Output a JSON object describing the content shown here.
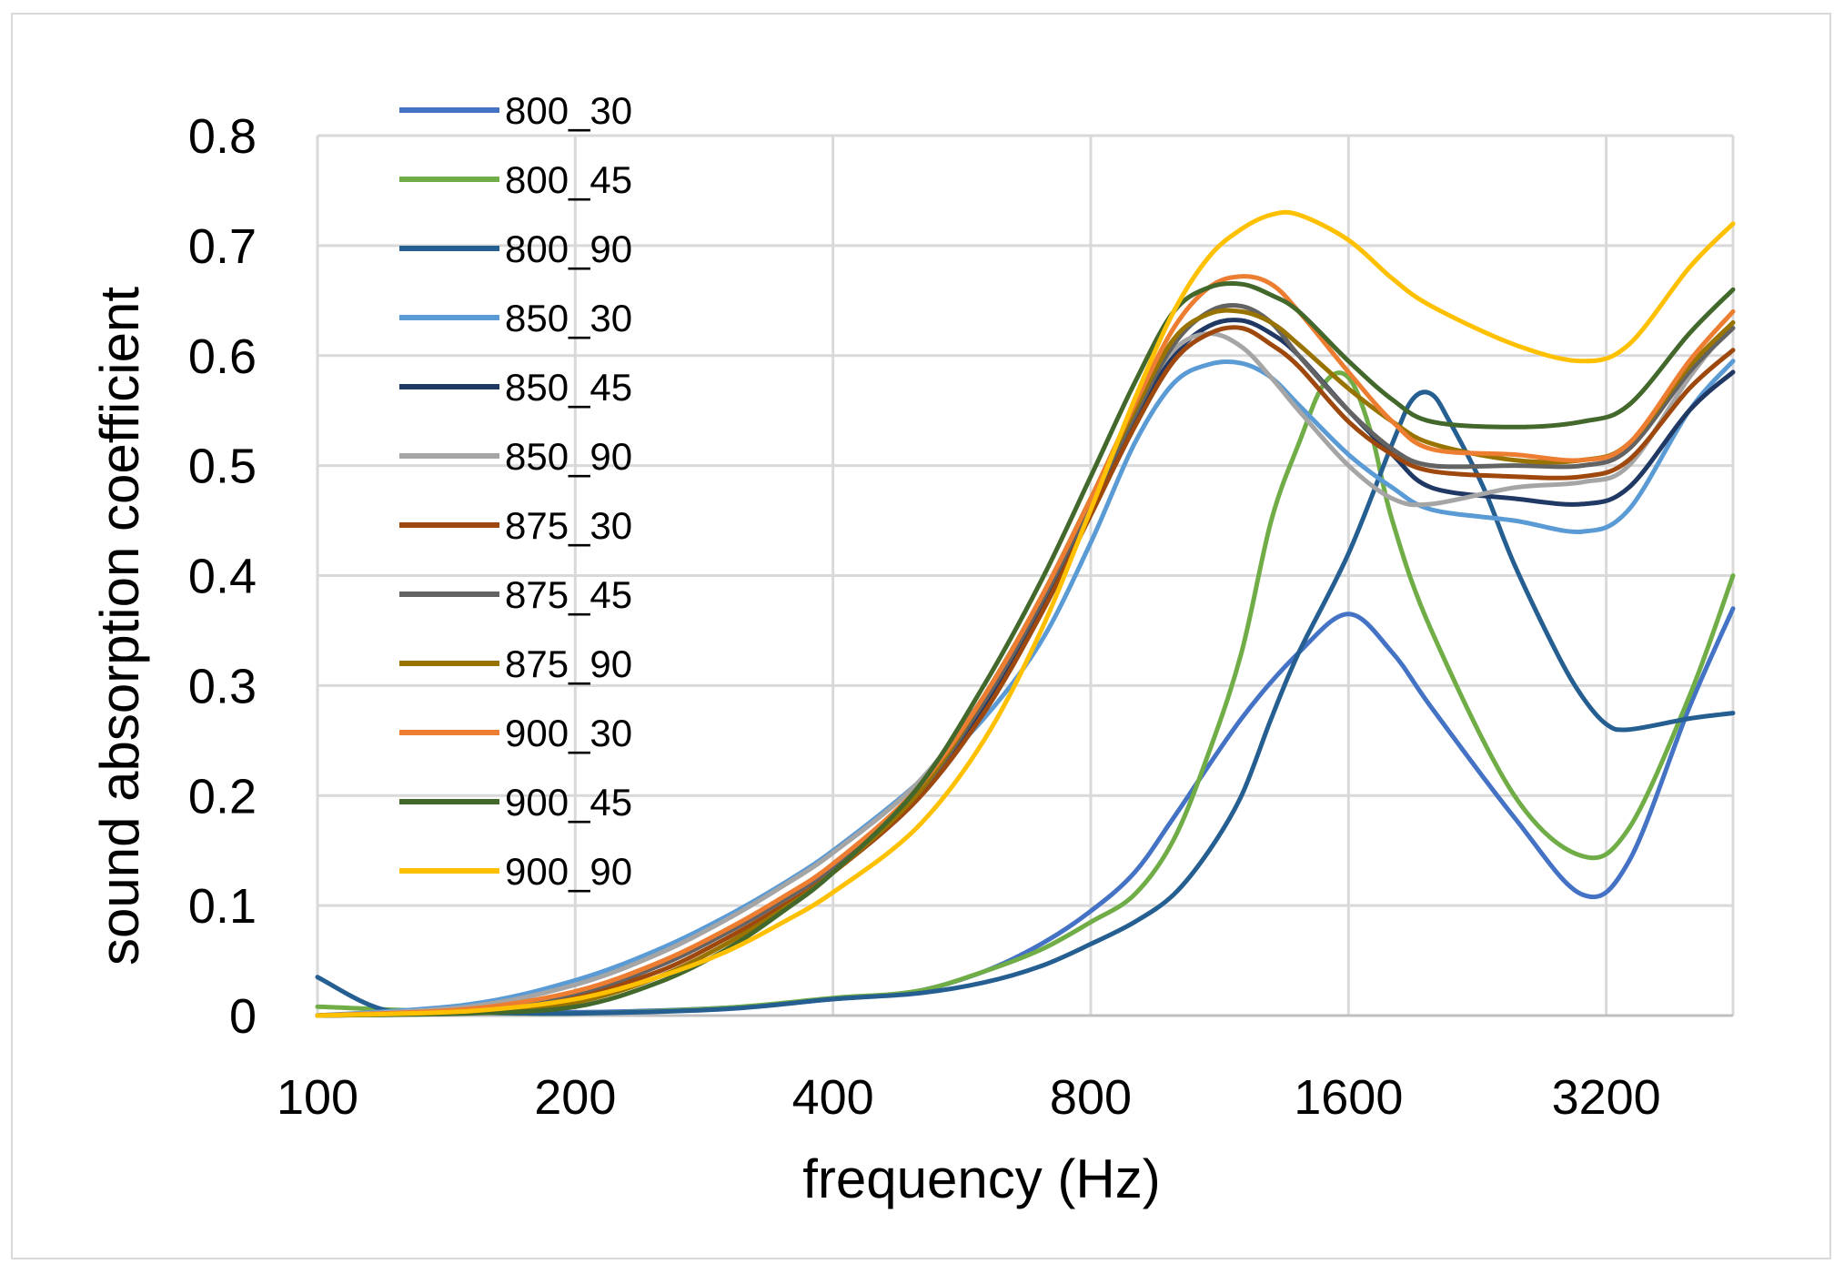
{
  "chart_data": {
    "type": "line",
    "title": "",
    "xlabel": "frequency (Hz)",
    "ylabel": "sound absorption coefficient",
    "x_scale": "log2",
    "xlim": [
      100,
      4500
    ],
    "ylim": [
      0,
      0.8
    ],
    "x_ticks": [
      100,
      200,
      400,
      800,
      1600,
      3200
    ],
    "x_tick_labels": [
      "100",
      "200",
      "400",
      "800",
      "1600",
      "3200"
    ],
    "y_ticks": [
      0,
      0.1,
      0.2,
      0.3,
      0.4,
      0.5,
      0.6,
      0.7,
      0.8
    ],
    "y_tick_labels": [
      "0",
      "0.1",
      "0.2",
      "0.3",
      "0.4",
      "0.5",
      "0.6",
      "0.7",
      "0.8"
    ],
    "grid": true,
    "legend_position": "top-left",
    "series": [
      {
        "name": "800_30",
        "color": "#4472C4",
        "points": [
          [
            100,
            0.0
          ],
          [
            150,
            0.005
          ],
          [
            200,
            0.003
          ],
          [
            300,
            0.007
          ],
          [
            400,
            0.015
          ],
          [
            500,
            0.022
          ],
          [
            600,
            0.04
          ],
          [
            700,
            0.065
          ],
          [
            800,
            0.095
          ],
          [
            900,
            0.13
          ],
          [
            1000,
            0.18
          ],
          [
            1200,
            0.27
          ],
          [
            1400,
            0.33
          ],
          [
            1600,
            0.365
          ],
          [
            1800,
            0.33
          ],
          [
            2000,
            0.28
          ],
          [
            2500,
            0.18
          ],
          [
            3000,
            0.11
          ],
          [
            3400,
            0.14
          ],
          [
            4000,
            0.28
          ],
          [
            4500,
            0.37
          ]
        ]
      },
      {
        "name": "800_45",
        "color": "#70AD47",
        "points": [
          [
            100,
            0.008
          ],
          [
            150,
            0.003
          ],
          [
            200,
            0.002
          ],
          [
            300,
            0.007
          ],
          [
            400,
            0.016
          ],
          [
            500,
            0.022
          ],
          [
            600,
            0.04
          ],
          [
            700,
            0.06
          ],
          [
            800,
            0.085
          ],
          [
            900,
            0.11
          ],
          [
            1000,
            0.16
          ],
          [
            1100,
            0.24
          ],
          [
            1200,
            0.33
          ],
          [
            1300,
            0.45
          ],
          [
            1400,
            0.52
          ],
          [
            1500,
            0.575
          ],
          [
            1600,
            0.58
          ],
          [
            1700,
            0.53
          ],
          [
            1800,
            0.45
          ],
          [
            2000,
            0.35
          ],
          [
            2500,
            0.2
          ],
          [
            3000,
            0.145
          ],
          [
            3400,
            0.17
          ],
          [
            4000,
            0.29
          ],
          [
            4500,
            0.4
          ]
        ]
      },
      {
        "name": "800_90",
        "color": "#255E91",
        "points": [
          [
            100,
            0.035
          ],
          [
            120,
            0.005
          ],
          [
            150,
            0.003
          ],
          [
            200,
            0.002
          ],
          [
            300,
            0.006
          ],
          [
            400,
            0.015
          ],
          [
            500,
            0.02
          ],
          [
            600,
            0.03
          ],
          [
            700,
            0.045
          ],
          [
            800,
            0.065
          ],
          [
            900,
            0.085
          ],
          [
            1000,
            0.11
          ],
          [
            1100,
            0.15
          ],
          [
            1200,
            0.2
          ],
          [
            1300,
            0.27
          ],
          [
            1400,
            0.33
          ],
          [
            1600,
            0.42
          ],
          [
            1800,
            0.52
          ],
          [
            1900,
            0.56
          ],
          [
            2000,
            0.565
          ],
          [
            2100,
            0.54
          ],
          [
            2300,
            0.48
          ],
          [
            2500,
            0.41
          ],
          [
            2800,
            0.33
          ],
          [
            3000,
            0.29
          ],
          [
            3200,
            0.265
          ],
          [
            3400,
            0.26
          ],
          [
            4000,
            0.27
          ],
          [
            4500,
            0.275
          ]
        ]
      },
      {
        "name": "850_30",
        "color": "#5B9BD5",
        "points": [
          [
            100,
            0.0
          ],
          [
            150,
            0.01
          ],
          [
            200,
            0.032
          ],
          [
            250,
            0.06
          ],
          [
            300,
            0.09
          ],
          [
            350,
            0.12
          ],
          [
            400,
            0.15
          ],
          [
            500,
            0.21
          ],
          [
            600,
            0.27
          ],
          [
            700,
            0.34
          ],
          [
            800,
            0.43
          ],
          [
            900,
            0.52
          ],
          [
            1000,
            0.575
          ],
          [
            1100,
            0.592
          ],
          [
            1200,
            0.593
          ],
          [
            1300,
            0.58
          ],
          [
            1400,
            0.555
          ],
          [
            1600,
            0.51
          ],
          [
            1800,
            0.48
          ],
          [
            2000,
            0.46
          ],
          [
            2500,
            0.45
          ],
          [
            3000,
            0.44
          ],
          [
            3400,
            0.46
          ],
          [
            4000,
            0.55
          ],
          [
            4500,
            0.595
          ]
        ]
      },
      {
        "name": "850_45",
        "color": "#203864",
        "points": [
          [
            100,
            0.0
          ],
          [
            150,
            0.006
          ],
          [
            200,
            0.02
          ],
          [
            250,
            0.045
          ],
          [
            300,
            0.075
          ],
          [
            350,
            0.105
          ],
          [
            400,
            0.135
          ],
          [
            500,
            0.2
          ],
          [
            600,
            0.28
          ],
          [
            700,
            0.37
          ],
          [
            800,
            0.46
          ],
          [
            900,
            0.54
          ],
          [
            1000,
            0.6
          ],
          [
            1100,
            0.627
          ],
          [
            1200,
            0.632
          ],
          [
            1300,
            0.62
          ],
          [
            1400,
            0.6
          ],
          [
            1600,
            0.55
          ],
          [
            1800,
            0.51
          ],
          [
            2000,
            0.48
          ],
          [
            2500,
            0.47
          ],
          [
            3000,
            0.465
          ],
          [
            3400,
            0.48
          ],
          [
            4000,
            0.55
          ],
          [
            4500,
            0.585
          ]
        ]
      },
      {
        "name": "850_90",
        "color": "#A5A5A5",
        "points": [
          [
            100,
            0.0
          ],
          [
            150,
            0.008
          ],
          [
            200,
            0.028
          ],
          [
            250,
            0.056
          ],
          [
            300,
            0.087
          ],
          [
            350,
            0.118
          ],
          [
            400,
            0.148
          ],
          [
            500,
            0.21
          ],
          [
            600,
            0.29
          ],
          [
            700,
            0.38
          ],
          [
            800,
            0.47
          ],
          [
            900,
            0.55
          ],
          [
            1000,
            0.605
          ],
          [
            1100,
            0.62
          ],
          [
            1200,
            0.608
          ],
          [
            1300,
            0.58
          ],
          [
            1400,
            0.55
          ],
          [
            1600,
            0.5
          ],
          [
            1800,
            0.47
          ],
          [
            2000,
            0.465
          ],
          [
            2500,
            0.48
          ],
          [
            3000,
            0.485
          ],
          [
            3400,
            0.5
          ],
          [
            4000,
            0.58
          ],
          [
            4500,
            0.63
          ]
        ]
      },
      {
        "name": "875_30",
        "color": "#9E480E",
        "points": [
          [
            100,
            0.0
          ],
          [
            150,
            0.005
          ],
          [
            200,
            0.018
          ],
          [
            250,
            0.04
          ],
          [
            300,
            0.07
          ],
          [
            350,
            0.1
          ],
          [
            400,
            0.13
          ],
          [
            500,
            0.195
          ],
          [
            600,
            0.275
          ],
          [
            700,
            0.365
          ],
          [
            800,
            0.455
          ],
          [
            900,
            0.535
          ],
          [
            1000,
            0.595
          ],
          [
            1100,
            0.62
          ],
          [
            1200,
            0.625
          ],
          [
            1300,
            0.61
          ],
          [
            1400,
            0.59
          ],
          [
            1600,
            0.54
          ],
          [
            1800,
            0.51
          ],
          [
            2000,
            0.495
          ],
          [
            2500,
            0.49
          ],
          [
            3000,
            0.49
          ],
          [
            3400,
            0.505
          ],
          [
            4000,
            0.57
          ],
          [
            4500,
            0.605
          ]
        ]
      },
      {
        "name": "875_45",
        "color": "#636363",
        "points": [
          [
            100,
            0.0
          ],
          [
            150,
            0.005
          ],
          [
            200,
            0.02
          ],
          [
            250,
            0.045
          ],
          [
            300,
            0.075
          ],
          [
            350,
            0.105
          ],
          [
            400,
            0.135
          ],
          [
            500,
            0.2
          ],
          [
            600,
            0.285
          ],
          [
            700,
            0.375
          ],
          [
            800,
            0.465
          ],
          [
            900,
            0.545
          ],
          [
            1000,
            0.61
          ],
          [
            1100,
            0.64
          ],
          [
            1200,
            0.645
          ],
          [
            1300,
            0.63
          ],
          [
            1400,
            0.6
          ],
          [
            1600,
            0.55
          ],
          [
            1800,
            0.515
          ],
          [
            2000,
            0.5
          ],
          [
            2500,
            0.5
          ],
          [
            3000,
            0.5
          ],
          [
            3400,
            0.515
          ],
          [
            4000,
            0.585
          ],
          [
            4500,
            0.625
          ]
        ]
      },
      {
        "name": "875_90",
        "color": "#997300",
        "points": [
          [
            100,
            0.0
          ],
          [
            150,
            0.003
          ],
          [
            200,
            0.012
          ],
          [
            250,
            0.035
          ],
          [
            300,
            0.065
          ],
          [
            350,
            0.097
          ],
          [
            400,
            0.13
          ],
          [
            500,
            0.2
          ],
          [
            600,
            0.29
          ],
          [
            700,
            0.38
          ],
          [
            800,
            0.47
          ],
          [
            900,
            0.55
          ],
          [
            1000,
            0.615
          ],
          [
            1100,
            0.638
          ],
          [
            1200,
            0.64
          ],
          [
            1300,
            0.63
          ],
          [
            1400,
            0.61
          ],
          [
            1600,
            0.57
          ],
          [
            1800,
            0.54
          ],
          [
            2000,
            0.52
          ],
          [
            2500,
            0.505
          ],
          [
            3000,
            0.505
          ],
          [
            3400,
            0.52
          ],
          [
            4000,
            0.59
          ],
          [
            4500,
            0.63
          ]
        ]
      },
      {
        "name": "900_30",
        "color": "#ED7D31",
        "points": [
          [
            100,
            0.0
          ],
          [
            150,
            0.006
          ],
          [
            200,
            0.022
          ],
          [
            250,
            0.048
          ],
          [
            300,
            0.078
          ],
          [
            350,
            0.108
          ],
          [
            400,
            0.138
          ],
          [
            500,
            0.205
          ],
          [
            600,
            0.29
          ],
          [
            700,
            0.38
          ],
          [
            800,
            0.47
          ],
          [
            900,
            0.555
          ],
          [
            1000,
            0.625
          ],
          [
            1100,
            0.662
          ],
          [
            1200,
            0.672
          ],
          [
            1300,
            0.665
          ],
          [
            1400,
            0.64
          ],
          [
            1600,
            0.585
          ],
          [
            1800,
            0.54
          ],
          [
            2000,
            0.515
          ],
          [
            2500,
            0.51
          ],
          [
            3000,
            0.505
          ],
          [
            3400,
            0.52
          ],
          [
            4000,
            0.595
          ],
          [
            4500,
            0.64
          ]
        ]
      },
      {
        "name": "900_45",
        "color": "#43682B",
        "points": [
          [
            100,
            0.0
          ],
          [
            150,
            0.002
          ],
          [
            200,
            0.008
          ],
          [
            250,
            0.03
          ],
          [
            300,
            0.06
          ],
          [
            350,
            0.095
          ],
          [
            400,
            0.13
          ],
          [
            500,
            0.205
          ],
          [
            600,
            0.3
          ],
          [
            700,
            0.395
          ],
          [
            800,
            0.49
          ],
          [
            900,
            0.575
          ],
          [
            1000,
            0.64
          ],
          [
            1100,
            0.662
          ],
          [
            1200,
            0.665
          ],
          [
            1300,
            0.655
          ],
          [
            1400,
            0.64
          ],
          [
            1600,
            0.595
          ],
          [
            1800,
            0.56
          ],
          [
            2000,
            0.54
          ],
          [
            2500,
            0.535
          ],
          [
            3000,
            0.54
          ],
          [
            3400,
            0.555
          ],
          [
            4000,
            0.62
          ],
          [
            4500,
            0.66
          ]
        ]
      },
      {
        "name": "900_90",
        "color": "#FFC000",
        "points": [
          [
            100,
            0.0
          ],
          [
            150,
            0.004
          ],
          [
            200,
            0.015
          ],
          [
            250,
            0.035
          ],
          [
            300,
            0.058
          ],
          [
            350,
            0.085
          ],
          [
            400,
            0.112
          ],
          [
            500,
            0.17
          ],
          [
            600,
            0.25
          ],
          [
            700,
            0.35
          ],
          [
            800,
            0.46
          ],
          [
            900,
            0.56
          ],
          [
            1000,
            0.64
          ],
          [
            1100,
            0.69
          ],
          [
            1200,
            0.715
          ],
          [
            1300,
            0.728
          ],
          [
            1400,
            0.728
          ],
          [
            1600,
            0.705
          ],
          [
            1800,
            0.67
          ],
          [
            2000,
            0.645
          ],
          [
            2500,
            0.61
          ],
          [
            3000,
            0.595
          ],
          [
            3400,
            0.61
          ],
          [
            4000,
            0.68
          ],
          [
            4500,
            0.72
          ]
        ]
      }
    ]
  }
}
